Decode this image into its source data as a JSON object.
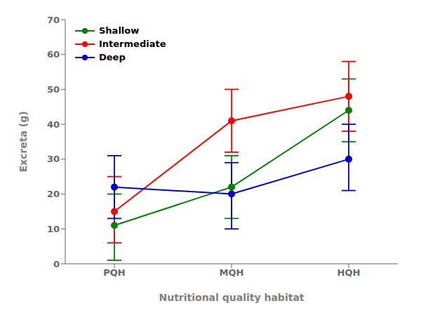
{
  "chart_data": {
    "type": "line",
    "categories": [
      "PQH",
      "MQH",
      "HQH"
    ],
    "series": [
      {
        "name": "Shallow",
        "color": "#008000",
        "values": [
          11,
          22,
          44
        ],
        "err_low": [
          10,
          9,
          9
        ],
        "err_high": [
          9,
          9,
          9
        ]
      },
      {
        "name": "Intermediate",
        "color": "#ff0000",
        "values": [
          15,
          41,
          48
        ],
        "err_low": [
          9,
          9,
          10
        ],
        "err_high": [
          10,
          9,
          10
        ]
      },
      {
        "name": "Deep",
        "color": "#0000cc",
        "values": [
          22,
          20,
          30
        ],
        "err_low": [
          9,
          10,
          9
        ],
        "err_high": [
          9,
          9,
          10
        ]
      }
    ],
    "xlabel": "Nutritional quality habitat",
    "ylabel": "Excreta (g)",
    "ylim": [
      0,
      70
    ],
    "yticks": [
      0,
      10,
      20,
      30,
      40,
      50,
      60,
      70
    ],
    "marker": "circle",
    "legend": "upper left",
    "grid": false
  }
}
